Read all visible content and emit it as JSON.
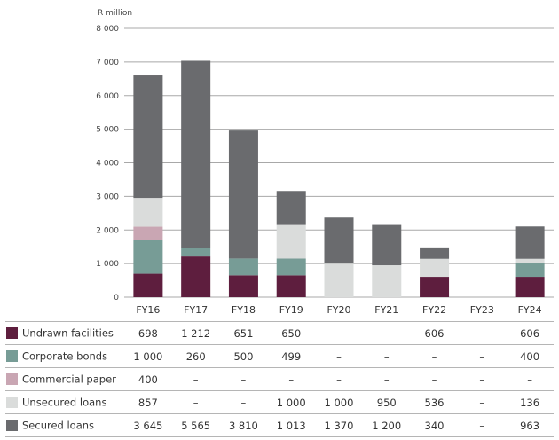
{
  "chart_data": {
    "type": "bar",
    "stacked": true,
    "unit_label": "R million",
    "categories": [
      "FY16",
      "FY17",
      "FY18",
      "FY19",
      "FY20",
      "FY21",
      "FY22",
      "FY23",
      "FY24"
    ],
    "ylim": [
      0,
      8000
    ],
    "yticks": [
      0,
      1000,
      2000,
      3000,
      4000,
      5000,
      6000,
      7000,
      8000
    ],
    "ytick_labels": [
      "0",
      "1 000",
      "2 000",
      "3 000",
      "4 000",
      "5 000",
      "6 000",
      "7 000",
      "8 000"
    ],
    "grid": true,
    "series": [
      {
        "name": "Undrawn facilities",
        "color": "#5e1e3e",
        "values": [
          698,
          1212,
          651,
          650,
          0,
          0,
          606,
          0,
          606
        ],
        "display": [
          "698",
          "1 212",
          "651",
          "650",
          "–",
          "–",
          "606",
          "–",
          "606"
        ]
      },
      {
        "name": "Corporate bonds",
        "color": "#779c96",
        "values": [
          1000,
          260,
          500,
          499,
          0,
          0,
          0,
          0,
          400
        ],
        "display": [
          "1 000",
          "260",
          "500",
          "499",
          "–",
          "–",
          "–",
          "–",
          "400"
        ]
      },
      {
        "name": "Commercial paper",
        "color": "#c9a6b3",
        "values": [
          400,
          0,
          0,
          0,
          0,
          0,
          0,
          0,
          0
        ],
        "display": [
          "400",
          "–",
          "–",
          "–",
          "–",
          "–",
          "–",
          "–",
          "–"
        ]
      },
      {
        "name": "Unsecured loans",
        "color": "#dadcdb",
        "values": [
          857,
          0,
          0,
          1000,
          1000,
          950,
          536,
          0,
          136
        ],
        "display": [
          "857",
          "–",
          "–",
          "1 000",
          "1 000",
          "950",
          "536",
          "–",
          "136"
        ]
      },
      {
        "name": "Secured loans",
        "color": "#6a6b6e",
        "values": [
          3645,
          5565,
          3810,
          1013,
          1370,
          1200,
          340,
          0,
          963
        ],
        "display": [
          "3 645",
          "5 565",
          "3 810",
          "1 013",
          "1 370",
          "1 200",
          "340",
          "–",
          "963"
        ]
      }
    ]
  }
}
